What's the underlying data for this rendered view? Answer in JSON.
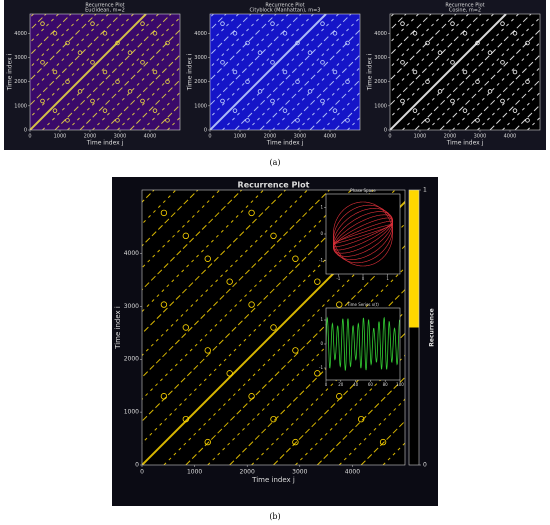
{
  "captions": [
    "(a)",
    "(b)"
  ],
  "chart_data": [
    {
      "type": "recurrence",
      "title": "Recurrence Plot",
      "subtitle": "Euclidean, m=2",
      "xlabel": "Time index j",
      "ylabel": "Time index i",
      "xlim": [
        0,
        5000
      ],
      "ylim": [
        0,
        4800
      ],
      "xticks": [
        0,
        1000,
        2000,
        3000,
        4000
      ],
      "yticks": [
        0,
        1000,
        2000,
        3000,
        4000
      ],
      "background": "#3a0a6a",
      "color": "#f0e040"
    },
    {
      "type": "recurrence",
      "title": "Recurrence Plot",
      "subtitle": "Cityblock (Manhattan), m=3",
      "xlabel": "Time index j",
      "ylabel": "Time index i",
      "xlim": [
        0,
        5000
      ],
      "ylim": [
        0,
        4800
      ],
      "xticks": [
        0,
        1000,
        2000,
        3000,
        4000
      ],
      "yticks": [
        0,
        1000,
        2000,
        3000,
        4000
      ],
      "background": "#1515c8",
      "color": "#c8d8ff"
    },
    {
      "type": "recurrence",
      "title": "Recurrence Plot",
      "subtitle": "Cosine, m=2",
      "xlabel": "Time index j",
      "ylabel": "Time index i",
      "xlim": [
        0,
        5000
      ],
      "ylim": [
        0,
        4800
      ],
      "xticks": [
        0,
        1000,
        2000,
        3000,
        4000
      ],
      "yticks": [
        0,
        1000,
        2000,
        3000,
        4000
      ],
      "background": "#000000",
      "color": "#ffffff"
    },
    {
      "type": "recurrence",
      "title": "Recurrence Plot",
      "xlabel": "Time index j",
      "ylabel": "Time index i",
      "xlim": [
        0,
        5000
      ],
      "ylim": [
        0,
        5200
      ],
      "xticks": [
        0,
        1000,
        2000,
        3000,
        4000
      ],
      "yticks": [
        0,
        1000,
        2000,
        3000,
        4000
      ],
      "background": "#000000",
      "color": "#ffd700",
      "colorbar": {
        "label": "Recurrence",
        "clim": [
          0,
          1
        ],
        "ticks": [
          0,
          1
        ],
        "colors": [
          "#000000",
          "#ffd700"
        ]
      }
    },
    {
      "type": "phase",
      "title": "Phase Space",
      "xlim": [
        -1.5,
        1.5
      ],
      "ylim": [
        -1.5,
        1.5
      ],
      "xticks": [
        -1,
        0,
        1
      ],
      "yticks": [
        -1,
        0,
        1
      ],
      "background": "#000000",
      "color": "#e0303a"
    },
    {
      "type": "line",
      "title": "Time Series x(t)",
      "xlim": [
        0,
        100
      ],
      "ylim": [
        -1.5,
        1.5
      ],
      "xticks": [
        0,
        20,
        40,
        60,
        80,
        100
      ],
      "yticks": [
        -1,
        0,
        1
      ],
      "background": "#000000",
      "color": "#33cc33"
    }
  ]
}
